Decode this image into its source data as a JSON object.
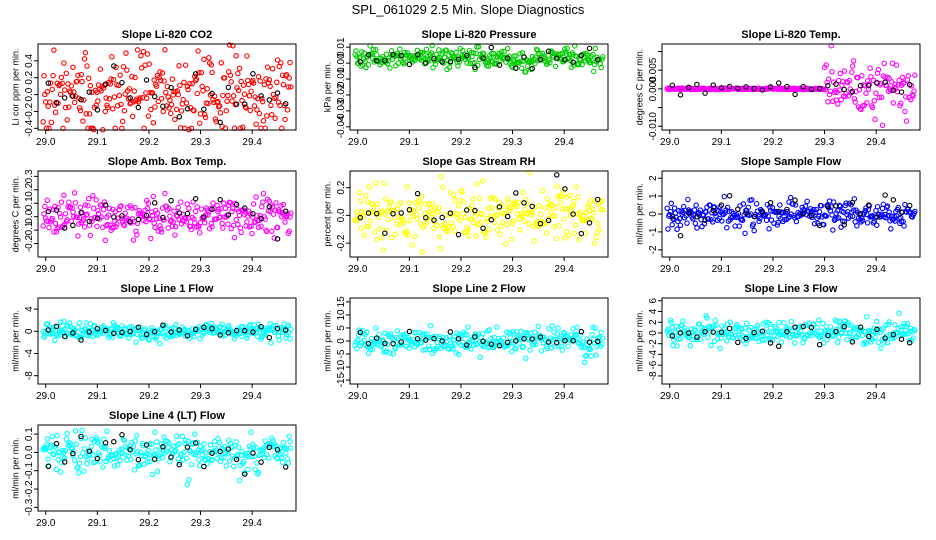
{
  "title": "SPL_061029  2.5 Min. Slope Diagnostics",
  "x_axis": {
    "ticks": [
      29.0,
      29.1,
      29.2,
      29.3,
      29.4
    ],
    "tick_labels": [
      "29.0",
      "29.1",
      "29.2",
      "29.3",
      "29.4"
    ],
    "xlim": [
      28.985,
      29.485
    ]
  },
  "chart_data": [
    {
      "type": "scatter",
      "title": "Slope Li-820 CO2",
      "ylabel": "Li cor ppm per min.",
      "color": "#ff0000",
      "ylim": [
        -0.42,
        0.6
      ],
      "yticks": [
        -0.4,
        -0.2,
        0.0,
        0.2,
        0.4
      ],
      "ytick_labels": [
        "-0.4",
        "-0.2",
        "0.0",
        "0.2",
        "0.4"
      ],
      "series": [
        {
          "name": "data",
          "n": 300,
          "center": 0.02,
          "spread": 0.24
        },
        {
          "name": "selected",
          "n": 30,
          "center": 0.02,
          "spread": 0.2
        }
      ]
    },
    {
      "type": "scatter",
      "title": "Slope Li-820 Pressure",
      "ylabel": "kPa per min.",
      "color": "#00cc00",
      "ylim": [
        -0.042,
        0.012
      ],
      "yticks": [
        -0.04,
        -0.03,
        -0.02,
        -0.01,
        0.0,
        0.01
      ],
      "ytick_labels": [
        "-0.04",
        "-0.03",
        "-0.02",
        "-0.01",
        "0.00",
        "0.01"
      ],
      "series": [
        {
          "name": "data",
          "n": 300,
          "center": 0.003,
          "spread": 0.003
        },
        {
          "name": "selected",
          "n": 30,
          "center": 0.003,
          "spread": 0.003
        }
      ]
    },
    {
      "type": "scatter",
      "title": "Slope Li-820 Temp.",
      "ylabel": "degrees C per min.",
      "color": "#ff00ff",
      "ylim": [
        -0.011,
        0.012
      ],
      "yticks": [
        -0.01,
        -0.005,
        0.0,
        0.005,
        0.01
      ],
      "ytick_labels": [
        "-0.010",
        "",
        "0.000",
        "0.005",
        ""
      ],
      "series": [
        {
          "name": "data",
          "n": 300,
          "center": 0.0,
          "spread": 0.002
        },
        {
          "name": "selected",
          "n": 30,
          "center": 0.0,
          "spread": 0.001
        }
      ]
    },
    {
      "type": "scatter",
      "title": "Slope Amb. Box Temp.",
      "ylabel": "degrees C per min.",
      "color": "#ff00ff",
      "ylim": [
        -0.3,
        0.34
      ],
      "yticks": [
        -0.2,
        -0.1,
        0.0,
        0.1,
        0.2,
        0.3
      ],
      "ytick_labels": [
        "-0.2",
        "-0.1",
        "0.0",
        "0.1",
        "0.2",
        "0.3"
      ],
      "series": [
        {
          "name": "data",
          "n": 300,
          "center": 0.0,
          "spread": 0.07
        },
        {
          "name": "selected",
          "n": 30,
          "center": 0.0,
          "spread": 0.07
        }
      ]
    },
    {
      "type": "scatter",
      "title": "Slope Gas Stream RH",
      "ylabel": "percent per min.",
      "color": "#ffff00",
      "ylim": [
        -0.3,
        0.32
      ],
      "yticks": [
        -0.2,
        0.0,
        0.2
      ],
      "ytick_labels": [
        "-0.2",
        "0.0",
        "0.2"
      ],
      "series": [
        {
          "name": "data",
          "n": 300,
          "center": 0.0,
          "spread": 0.1
        },
        {
          "name": "selected",
          "n": 30,
          "center": 0.0,
          "spread": 0.1
        }
      ]
    },
    {
      "type": "scatter",
      "title": "Slope Sample Flow",
      "ylabel": "ml/min per min.",
      "color": "#0000ff",
      "ylim": [
        -2.4,
        2.4
      ],
      "yticks": [
        -2,
        -1,
        0,
        1,
        2
      ],
      "ytick_labels": [
        "-2",
        "-1",
        "0",
        "1",
        "2"
      ],
      "series": [
        {
          "name": "data",
          "n": 300,
          "center": 0.0,
          "spread": 0.35
        },
        {
          "name": "selected",
          "n": 30,
          "center": 0.0,
          "spread": 0.5
        }
      ]
    },
    {
      "type": "scatter",
      "title": "Slope Line 1 Flow",
      "ylabel": "ml/min per min.",
      "color": "#00ffff",
      "ylim": [
        -9.5,
        6.0
      ],
      "yticks": [
        -8,
        -4,
        0,
        4
      ],
      "ytick_labels": [
        "-8",
        "-4",
        "0",
        "4"
      ],
      "series": [
        {
          "name": "data",
          "n": 300,
          "center": 0.0,
          "spread": 0.8
        },
        {
          "name": "selected",
          "n": 30,
          "center": 0.0,
          "spread": 0.6
        }
      ]
    },
    {
      "type": "scatter",
      "title": "Slope Line 2 Flow",
      "ylabel": "ml/min per min.",
      "color": "#00ffff",
      "ylim": [
        -16.5,
        16.5
      ],
      "yticks": [
        -15,
        -10,
        -5,
        0,
        5,
        10,
        15
      ],
      "ytick_labels": [
        "-15",
        "-10",
        "-5",
        "0",
        "5",
        "10",
        "15"
      ],
      "series": [
        {
          "name": "data",
          "n": 300,
          "center": 0.0,
          "spread": 2.5
        },
        {
          "name": "selected",
          "n": 30,
          "center": 0.0,
          "spread": 1.5
        }
      ]
    },
    {
      "type": "scatter",
      "title": "Slope Line 3 Flow",
      "ylabel": "ml/min per min.",
      "color": "#00ffff",
      "ylim": [
        -9.5,
        6.5
      ],
      "yticks": [
        -8,
        -6,
        -4,
        -2,
        0,
        2,
        4,
        6
      ],
      "ytick_labels": [
        "-8",
        "-6",
        "-4",
        "-2",
        "0",
        "2",
        "4",
        "6"
      ],
      "series": [
        {
          "name": "data",
          "n": 300,
          "center": 0.0,
          "spread": 1.2
        },
        {
          "name": "selected",
          "n": 30,
          "center": 0.0,
          "spread": 1.0
        }
      ]
    },
    {
      "type": "scatter",
      "title": "Slope Line 4 (LT) Flow",
      "ylabel": "ml/min per min.",
      "color": "#00ffff",
      "ylim": [
        -0.32,
        0.15
      ],
      "yticks": [
        -0.3,
        -0.2,
        -0.1,
        0.0,
        0.1
      ],
      "ytick_labels": [
        "-0.3",
        "-0.2",
        "-0.1",
        "0.0",
        "0.1"
      ],
      "series": [
        {
          "name": "data",
          "n": 300,
          "center": 0.0,
          "spread": 0.05
        },
        {
          "name": "selected",
          "n": 30,
          "center": 0.0,
          "spread": 0.05
        }
      ]
    }
  ]
}
